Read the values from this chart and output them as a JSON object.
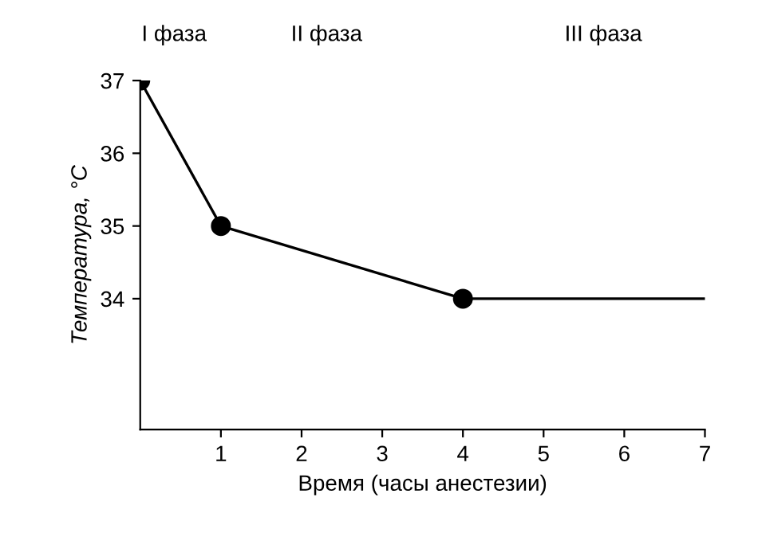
{
  "chart_data": {
    "type": "line",
    "xlabel": "Время (часы анестезии)",
    "ylabel": "Температура, °C",
    "annotations": [
      "I фаза",
      "II фаза",
      "III фаза"
    ],
    "series": [
      {
        "x": [
          0,
          1,
          4
        ],
        "values": [
          37,
          35,
          34
        ],
        "color": "#000000",
        "marker": "circle"
      },
      {
        "x": [
          4,
          7
        ],
        "values": [
          34,
          34
        ],
        "color": "#000000",
        "marker": "none"
      }
    ],
    "xlim": [
      0,
      7
    ],
    "xticks": [
      1,
      2,
      3,
      4,
      5,
      6,
      7
    ],
    "ylim": [
      32.2,
      37
    ],
    "yticks": [
      34,
      35,
      36,
      37
    ],
    "grid": false,
    "legend": false,
    "line_style": "solid"
  }
}
